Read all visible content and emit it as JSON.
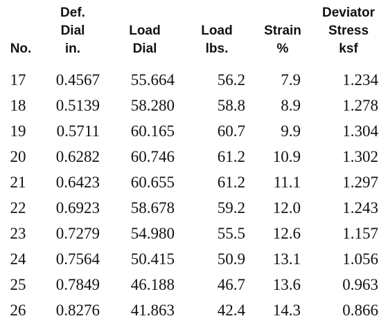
{
  "headers": {
    "no": [
      "No."
    ],
    "def_dial": [
      "Def.",
      "Dial",
      "in."
    ],
    "load_dial": [
      "Load",
      "Dial"
    ],
    "load_lbs": [
      "Load",
      "lbs."
    ],
    "strain": [
      "Strain",
      "%"
    ],
    "deviator": [
      "Deviator",
      "Stress",
      "ksf"
    ]
  },
  "rows": [
    [
      "17",
      "0.4567",
      "55.664",
      "56.2",
      "7.9",
      "1.234"
    ],
    [
      "18",
      "0.5139",
      "58.280",
      "58.8",
      "8.9",
      "1.278"
    ],
    [
      "19",
      "0.5711",
      "60.165",
      "60.7",
      "9.9",
      "1.304"
    ],
    [
      "20",
      "0.6282",
      "60.746",
      "61.2",
      "10.9",
      "1.302"
    ],
    [
      "21",
      "0.6423",
      "60.655",
      "61.2",
      "11.1",
      "1.297"
    ],
    [
      "22",
      "0.6923",
      "58.678",
      "59.2",
      "12.0",
      "1.243"
    ],
    [
      "23",
      "0.7279",
      "54.980",
      "55.5",
      "12.6",
      "1.157"
    ],
    [
      "24",
      "0.7564",
      "50.415",
      "50.9",
      "13.1",
      "1.056"
    ],
    [
      "25",
      "0.7849",
      "46.188",
      "46.7",
      "13.6",
      "0.963"
    ],
    [
      "26",
      "0.8276",
      "41.863",
      "42.4",
      "14.3",
      "0.866"
    ]
  ]
}
